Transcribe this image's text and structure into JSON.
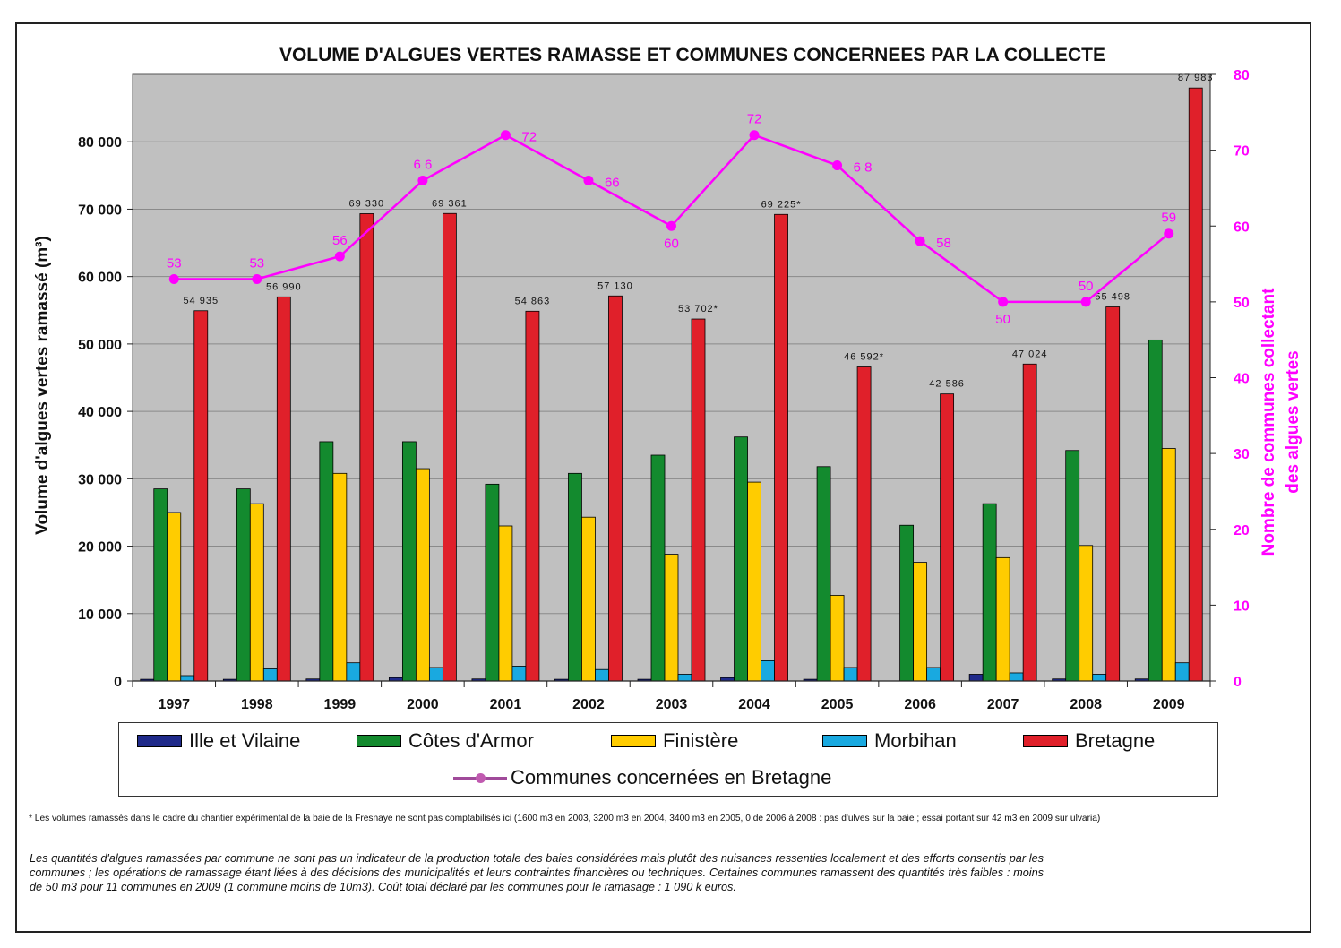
{
  "chart_data": {
    "type": "bar",
    "title": "VOLUME  D'ALGUES VERTES RAMASSE ET COMMUNES CONCERNEES PAR LA COLLECTE",
    "ylabel": "Volume d'algues vertes ramassé (m³)",
    "y2label_line1": "Nombre de communes collectant",
    "y2label_line2": "des algues vertes",
    "ylim": [
      0,
      90000
    ],
    "y2lim": [
      0,
      80
    ],
    "yticks": [
      0,
      10000,
      20000,
      30000,
      40000,
      50000,
      60000,
      70000,
      80000
    ],
    "ytick_labels": [
      "0",
      "10 000",
      "20 000",
      "30 000",
      "40 000",
      "50 000",
      "60 000",
      "70 000",
      "80 000"
    ],
    "y2ticks": [
      0,
      10,
      20,
      30,
      40,
      50,
      60,
      70,
      80
    ],
    "categories": [
      "1997",
      "1998",
      "1999",
      "2000",
      "2001",
      "2002",
      "2003",
      "2004",
      "2005",
      "2006",
      "2007",
      "2008",
      "2009"
    ],
    "series": [
      {
        "name": "Ille et Vilaine",
        "color": "#1f2a8a",
        "values": [
          250,
          250,
          300,
          500,
          300,
          250,
          250,
          500,
          250,
          0,
          1000,
          300,
          300
        ]
      },
      {
        "name": "Côtes d'Armor",
        "color": "#138a2e",
        "values": [
          28500,
          28500,
          35500,
          35500,
          29200,
          30800,
          33500,
          36200,
          31800,
          23100,
          26300,
          34200,
          50600
        ]
      },
      {
        "name": "Finistère",
        "color": "#ffcc00",
        "values": [
          25000,
          26300,
          30800,
          31500,
          23000,
          24300,
          18800,
          29500,
          12700,
          17600,
          18300,
          20100,
          34500
        ]
      },
      {
        "name": "Morbihan",
        "color": "#19a9e0",
        "values": [
          800,
          1800,
          2700,
          2000,
          2200,
          1700,
          1000,
          3000,
          2000,
          2000,
          1200,
          1000,
          2700
        ]
      },
      {
        "name": "Bretagne",
        "color": "#e0202a",
        "values": [
          54935,
          56990,
          69330,
          69361,
          54863,
          57130,
          53702,
          69225,
          46592,
          42586,
          47024,
          55498,
          87983
        ]
      }
    ],
    "bretagne_labels": [
      "54 935",
      "56 990",
      "69 330",
      "69 361",
      "54 863",
      "57 130",
      "53 702*",
      "69 225*",
      "46 592*",
      "42 586",
      "47 024",
      "55 498",
      "87 983"
    ],
    "line_series": {
      "name": "Communes concernées en Bretagne",
      "color": "#ff00ff",
      "axis": "right",
      "values": [
        53,
        53,
        56,
        66,
        72,
        66,
        60,
        72,
        68,
        58,
        50,
        50,
        59
      ],
      "labels": [
        "53",
        "53",
        "56",
        "6 6",
        "72",
        "66",
        "60",
        "72",
        "6 8",
        "58",
        "50",
        "50",
        "59"
      ],
      "label_positions": [
        "above",
        "above",
        "above",
        "above",
        "right",
        "right",
        "below",
        "above",
        "right",
        "right",
        "below",
        "above",
        "above"
      ]
    },
    "grid": true,
    "plot_background": "#c0c0c0",
    "legend": "bottom"
  },
  "footnote": "* Les volumes ramassés dans le cadre du chantier expérimental de la baie de la Fresnaye ne sont pas comptabilisés ici (1600 m3 en 2003, 3200 m3 en 2004, 3400 m3 en 2005, 0 de 2006 à 2008 : pas d'ulves sur la baie ; essai portant sur 42 m3 en 2009 sur ulvaria)",
  "comment": "Les quantités d'algues ramassées par commune ne sont pas un indicateur de la production totale des baies considérées mais plutôt des nuisances ressenties localement et des efforts consentis par les communes ; les opérations de ramassage étant liées à des décisions des municipalités et leurs contraintes financières ou techniques. Certaines communes ramassent des quantités très faibles : moins de 50 m3 pour 11 communes en 2009 (1 commune moins de 10m3). Coût total déclaré par les communes pour le ramasage : 1 090 k euros."
}
